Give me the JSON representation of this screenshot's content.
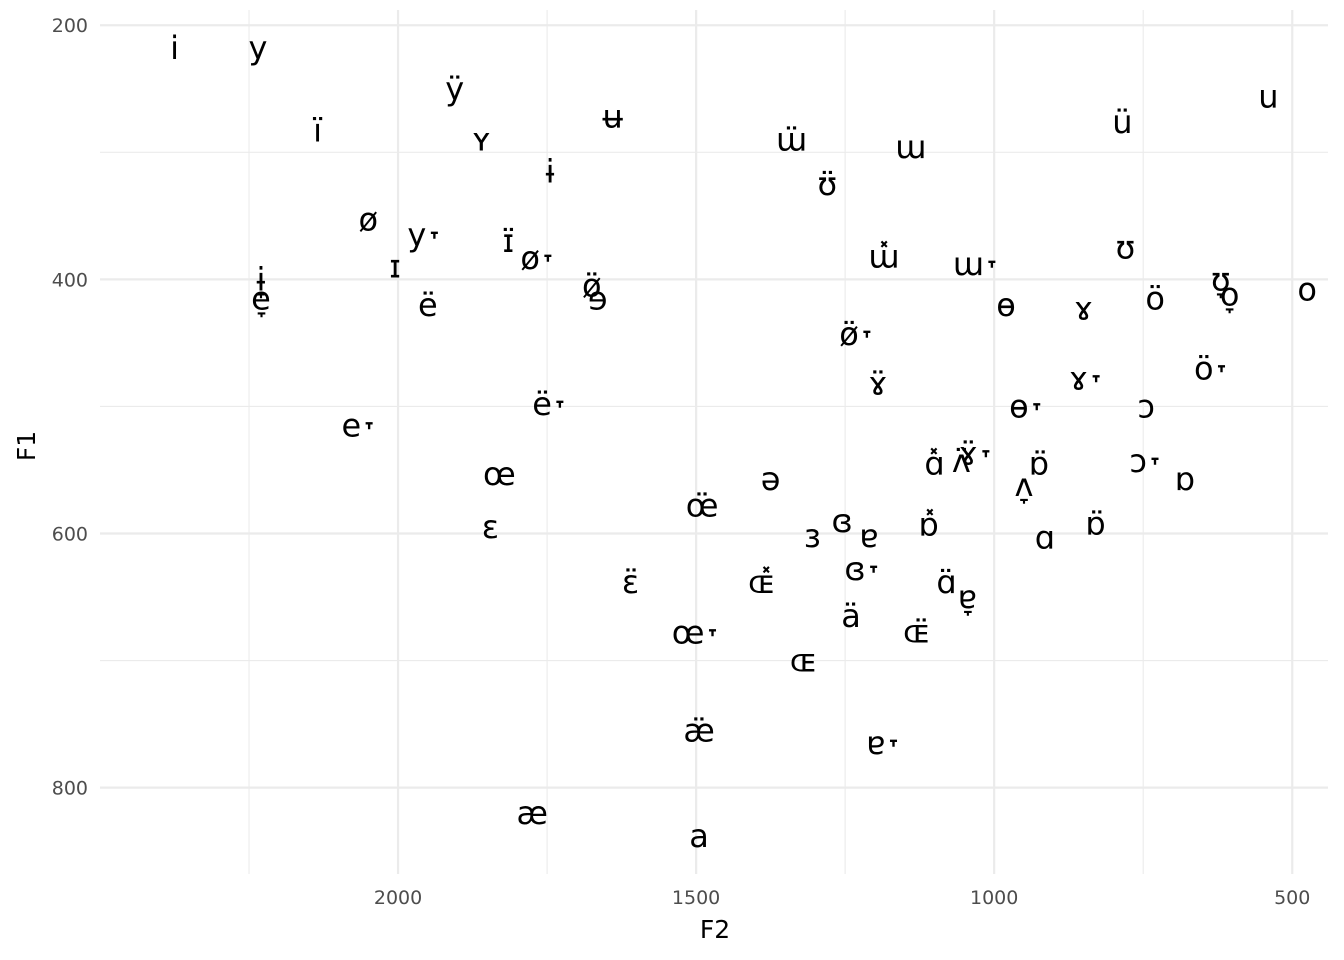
{
  "chart_data": {
    "type": "scatter",
    "title": "",
    "xlabel": "F2",
    "ylabel": "F1",
    "x_reversed": true,
    "y_reversed": true,
    "xlim": [
      2500,
      440
    ],
    "ylim": [
      868,
      188
    ],
    "x_ticks": [
      2000,
      1500,
      1000,
      500
    ],
    "x_tick_labels": [
      "2000",
      "1500",
      "1000",
      "500"
    ],
    "y_ticks": [
      200,
      400,
      600,
      800
    ],
    "y_tick_labels": [
      "200",
      "400",
      "600",
      "800"
    ],
    "grid": true,
    "points": [
      {
        "label": "i",
        "x": 2375,
        "y": 218
      },
      {
        "label": "y",
        "x": 2235,
        "y": 218
      },
      {
        "label": "ÿ",
        "x": 1905,
        "y": 250
      },
      {
        "label": "ï",
        "x": 2135,
        "y": 283
      },
      {
        "label": "ʏ",
        "x": 1860,
        "y": 290
      },
      {
        "label": "ʉ",
        "x": 1640,
        "y": 272
      },
      {
        "label": "ɯ̈",
        "x": 1340,
        "y": 290
      },
      {
        "label": "ɯ",
        "x": 1140,
        "y": 296
      },
      {
        "label": "ü",
        "x": 785,
        "y": 276
      },
      {
        "label": "u",
        "x": 540,
        "y": 256
      },
      {
        "label": "ɨ",
        "x": 1745,
        "y": 315
      },
      {
        "label": "ʊ̈",
        "x": 1280,
        "y": 325
      },
      {
        "label": "ø",
        "x": 2050,
        "y": 353
      },
      {
        "label": "y˕",
        "x": 1955,
        "y": 365
      },
      {
        "label": "ɪ̈",
        "x": 1815,
        "y": 370
      },
      {
        "label": "ø˕",
        "x": 1765,
        "y": 383
      },
      {
        "label": "ɯ̽",
        "x": 1185,
        "y": 382
      },
      {
        "label": "ɯ˕",
        "x": 1030,
        "y": 388
      },
      {
        "label": "ʊ",
        "x": 780,
        "y": 375
      },
      {
        "label": "ɪ",
        "x": 2005,
        "y": 390
      },
      {
        "label": "ɨ̞",
        "x": 2230,
        "y": 400
      },
      {
        "label": "e̞",
        "x": 2230,
        "y": 415
      },
      {
        "label": "ë",
        "x": 1950,
        "y": 420
      },
      {
        "label": "ø̈",
        "x": 1675,
        "y": 405
      },
      {
        "label": "ɘ",
        "x": 1665,
        "y": 415
      },
      {
        "label": "ʊ̞",
        "x": 620,
        "y": 400
      },
      {
        "label": "ö",
        "x": 730,
        "y": 415
      },
      {
        "label": "o̞",
        "x": 605,
        "y": 412
      },
      {
        "label": "o",
        "x": 475,
        "y": 408
      },
      {
        "label": "ɵ",
        "x": 980,
        "y": 420
      },
      {
        "label": "ɤ",
        "x": 850,
        "y": 423
      },
      {
        "label": "ø̈˕",
        "x": 1230,
        "y": 443
      },
      {
        "label": "ɤ̈",
        "x": 1195,
        "y": 482
      },
      {
        "label": "ɤ˕",
        "x": 845,
        "y": 478
      },
      {
        "label": "ö˕",
        "x": 635,
        "y": 470
      },
      {
        "label": "ë˕",
        "x": 1745,
        "y": 498
      },
      {
        "label": "e˕",
        "x": 2065,
        "y": 515
      },
      {
        "label": "ɵ˕",
        "x": 945,
        "y": 500
      },
      {
        "label": "ɔ",
        "x": 745,
        "y": 500
      },
      {
        "label": "ɤ̈˕",
        "x": 1030,
        "y": 537
      },
      {
        "label": "ɑ̽",
        "x": 1100,
        "y": 545
      },
      {
        "label": "ʌ̈",
        "x": 1055,
        "y": 543
      },
      {
        "label": "œ",
        "x": 1830,
        "y": 553
      },
      {
        "label": "ə",
        "x": 1375,
        "y": 557
      },
      {
        "label": "ʌ̞",
        "x": 950,
        "y": 562
      },
      {
        "label": "ɒ̈",
        "x": 925,
        "y": 545
      },
      {
        "label": "ɔ˕",
        "x": 745,
        "y": 543
      },
      {
        "label": "ɒ",
        "x": 680,
        "y": 557
      },
      {
        "label": "œ̈",
        "x": 1490,
        "y": 578
      },
      {
        "label": "ɛ",
        "x": 1845,
        "y": 595
      },
      {
        "label": "ɞ",
        "x": 1255,
        "y": 590
      },
      {
        "label": "ɒ̽",
        "x": 1110,
        "y": 593
      },
      {
        "label": "ɒ̈",
        "x": 830,
        "y": 592
      },
      {
        "label": "ɜ",
        "x": 1305,
        "y": 602
      },
      {
        "label": "ɐ",
        "x": 1210,
        "y": 602
      },
      {
        "label": "ɑ",
        "x": 915,
        "y": 603
      },
      {
        "label": "ɞ˕",
        "x": 1220,
        "y": 628
      },
      {
        "label": "ɛ̈",
        "x": 1610,
        "y": 638
      },
      {
        "label": "ɶ̽",
        "x": 1390,
        "y": 638
      },
      {
        "label": "ɑ̈",
        "x": 1080,
        "y": 638
      },
      {
        "label": "ɐ̞",
        "x": 1045,
        "y": 650
      },
      {
        "label": "ä",
        "x": 1240,
        "y": 665
      },
      {
        "label": "œ˕",
        "x": 1500,
        "y": 678
      },
      {
        "label": "ɶ̈",
        "x": 1130,
        "y": 677
      },
      {
        "label": "ɶ",
        "x": 1320,
        "y": 700
      },
      {
        "label": "æ̈",
        "x": 1495,
        "y": 755
      },
      {
        "label": "ɐ˕",
        "x": 1185,
        "y": 765
      },
      {
        "label": "æ",
        "x": 1775,
        "y": 820
      },
      {
        "label": "a",
        "x": 1495,
        "y": 838
      }
    ]
  }
}
